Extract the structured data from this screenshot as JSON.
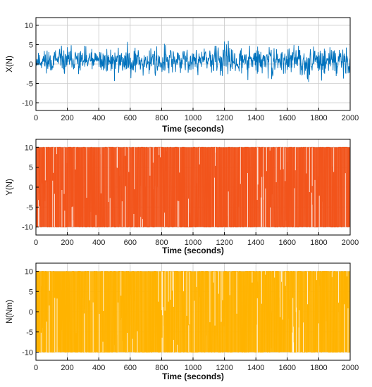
{
  "chart_data": [
    {
      "type": "line",
      "xlabel": "Time (seconds)",
      "ylabel": "X(N)",
      "xlim": [
        0,
        2000
      ],
      "ylim": [
        -12,
        12
      ],
      "xticks": [
        0,
        200,
        400,
        600,
        800,
        1000,
        1200,
        1400,
        1600,
        1800,
        2000
      ],
      "yticks": [
        10,
        5,
        0,
        -5,
        -10
      ],
      "grid": true,
      "color": "#0072BD",
      "series": [
        {
          "x": [
            0,
            100,
            200,
            300,
            400,
            500,
            600,
            700,
            800,
            900,
            1000,
            1100,
            1200,
            1300,
            1400,
            1500,
            1600,
            1700,
            1800,
            1900,
            2000
          ],
          "upper": [
            6.5,
            6,
            6.2,
            6.5,
            6,
            6.3,
            6.5,
            6.5,
            6.5,
            6.2,
            7,
            7.5,
            9,
            6.5,
            7,
            6.5,
            6.5,
            7,
            7,
            7.5,
            8
          ],
          "lower": [
            -5.5,
            -6,
            -6,
            -6,
            -6,
            -6,
            -6,
            -6.5,
            -8,
            -6,
            -6,
            -6,
            -6.5,
            -6,
            -6.5,
            -6,
            -6,
            -6,
            -6.5,
            -6,
            -5.5
          ],
          "mean": [
            0.8,
            0.8,
            0.7,
            0.8,
            0.8,
            0.7,
            0.9,
            0.8,
            0.8,
            0.8,
            0.8,
            0.9,
            1.0,
            0.8,
            0.8,
            0.8,
            0.8,
            0.8,
            0.8,
            0.9,
            1.0
          ]
        }
      ]
    },
    {
      "type": "line",
      "xlabel": "Time (seconds)",
      "ylabel": "Y(N)",
      "xlim": [
        0,
        2000
      ],
      "ylim": [
        -12,
        12
      ],
      "xticks": [
        0,
        200,
        400,
        600,
        800,
        1000,
        1200,
        1400,
        1600,
        1800,
        2000
      ],
      "yticks": [
        10,
        5,
        0,
        -5,
        -10
      ],
      "grid": true,
      "color": "#F2541B",
      "series": [
        {
          "x": [
            0,
            2000
          ],
          "upper": [
            10,
            10
          ],
          "lower": [
            -10,
            -10
          ],
          "mean": [
            0,
            0
          ]
        }
      ]
    },
    {
      "type": "line",
      "xlabel": "Time (seconds)",
      "ylabel": "N(Nm)",
      "xlim": [
        0,
        2000
      ],
      "ylim": [
        -12,
        12
      ],
      "xticks": [
        0,
        200,
        400,
        600,
        800,
        1000,
        1200,
        1400,
        1600,
        1800,
        2000
      ],
      "yticks": [
        10,
        5,
        0,
        -5,
        -10
      ],
      "grid": true,
      "color": "#FFB300",
      "series": [
        {
          "x": [
            0,
            2000
          ],
          "upper": [
            10,
            10
          ],
          "lower": [
            -10,
            -10
          ],
          "mean": [
            0,
            0
          ]
        }
      ]
    }
  ]
}
